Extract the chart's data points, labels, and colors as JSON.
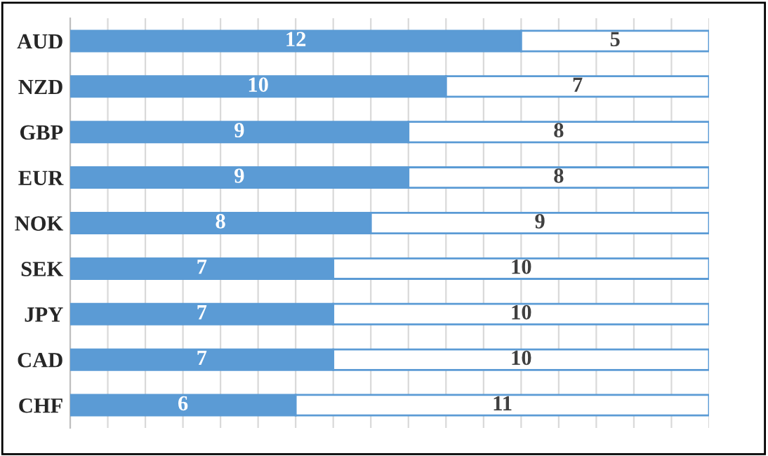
{
  "chart_data": {
    "type": "bar",
    "orientation": "horizontal",
    "stacked": true,
    "data_labels": true,
    "grid": "x",
    "legend": false,
    "categories": [
      "AUD",
      "NZD",
      "GBP",
      "EUR",
      "NOK",
      "SEK",
      "JPY",
      "CAD",
      "CHF"
    ],
    "series": [
      {
        "color": "#5b9bd5",
        "values": [
          12,
          10,
          9,
          9,
          8,
          7,
          7,
          7,
          6
        ]
      },
      {
        "color": "#ffffff",
        "values": [
          5,
          7,
          8,
          8,
          9,
          10,
          10,
          10,
          11
        ]
      }
    ],
    "xlim": [
      0,
      17
    ],
    "xticks": [
      {
        "value": 0,
        "label": null
      },
      {
        "value": 1,
        "label": null
      },
      {
        "value": 2,
        "label": null
      },
      {
        "value": 3,
        "label": null
      },
      {
        "value": 4,
        "label": null
      },
      {
        "value": 5,
        "label": null
      },
      {
        "value": 6,
        "label": null
      },
      {
        "value": 7,
        "label": null
      },
      {
        "value": 8,
        "label": null
      },
      {
        "value": 9,
        "label": null
      },
      {
        "value": 10,
        "label": null
      },
      {
        "value": 11,
        "label": null
      },
      {
        "value": 12,
        "label": null
      },
      {
        "value": 13,
        "label": null
      },
      {
        "value": 14,
        "label": null
      },
      {
        "value": 15,
        "label": null
      },
      {
        "value": 16,
        "label": null
      },
      {
        "value": 17,
        "label": null
      }
    ]
  }
}
